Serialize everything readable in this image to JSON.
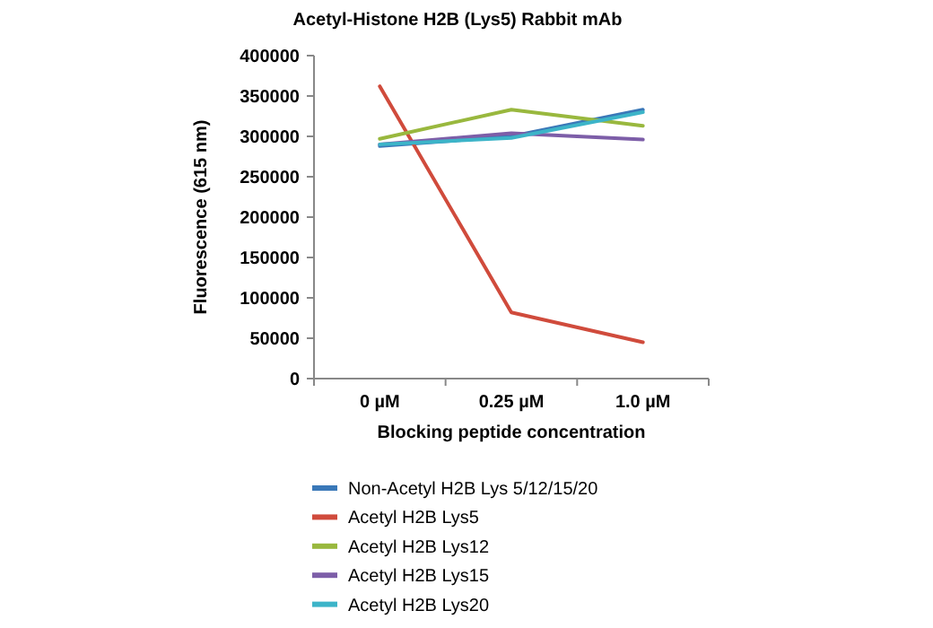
{
  "chart_data": {
    "type": "line",
    "title": "Acetyl-Histone H2B (Lys5) Rabbit mAb",
    "xlabel": "Blocking peptide concentration",
    "ylabel": "Fluorescence (615 nm)",
    "categories": [
      "0 µM",
      "0.25 µM",
      "1.0 µM"
    ],
    "ylim": [
      0,
      400000
    ],
    "yticks": [
      0,
      50000,
      100000,
      150000,
      200000,
      250000,
      300000,
      350000,
      400000
    ],
    "grid": false,
    "legend": "bottom",
    "marker": "none",
    "line_style": "solid",
    "series": [
      {
        "name": "Non-Acetyl H2B Lys 5/12/15/20",
        "color": "#3a78b8",
        "values": [
          288000,
          300000,
          333000
        ]
      },
      {
        "name": "Acetyl H2B Lys5",
        "color": "#d04b3c",
        "values": [
          362000,
          82000,
          45000
        ]
      },
      {
        "name": "Acetyl H2B Lys12",
        "color": "#99b83e",
        "values": [
          297000,
          333000,
          313000
        ]
      },
      {
        "name": "Acetyl H2B Lys15",
        "color": "#7d5ea8",
        "values": [
          290000,
          304000,
          296000
        ]
      },
      {
        "name": "Acetyl H2B Lys20",
        "color": "#3cb4c8",
        "values": [
          290000,
          298000,
          330000
        ]
      }
    ]
  }
}
